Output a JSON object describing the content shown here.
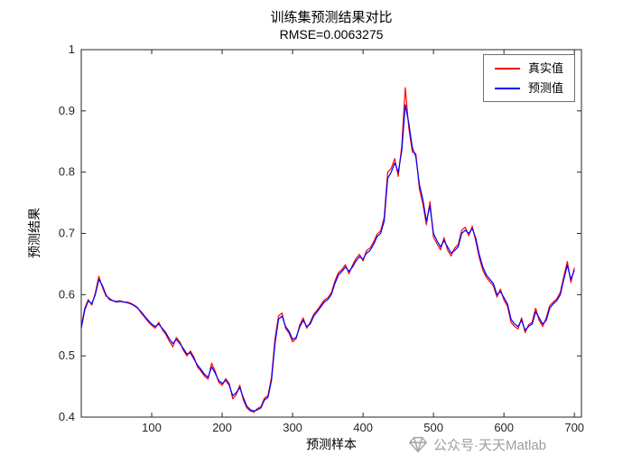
{
  "title": "训练集预测结果对比",
  "subtitle": "RMSE=0.0063275",
  "axes": {
    "xlabel": "预测样本",
    "ylabel": "预测结果"
  },
  "legend": {
    "items": [
      {
        "label": "真实值",
        "color": "#ff0000"
      },
      {
        "label": "预测值",
        "color": "#0000ff"
      }
    ]
  },
  "watermark": {
    "text": "公众号·天天Matlab"
  },
  "chart_data": {
    "type": "line",
    "title": "训练集预测结果对比",
    "subtitle": "RMSE=0.0063275",
    "xlabel": "预测样本",
    "ylabel": "预测结果",
    "xlim": [
      0,
      710
    ],
    "ylim": [
      0.4,
      1.0
    ],
    "grid": false,
    "legend_position": "top-right",
    "xticks": [
      100,
      200,
      300,
      400,
      500,
      600,
      700
    ],
    "yticks": [
      {
        "v": 0.4,
        "label": "0.4"
      },
      {
        "v": 0.5,
        "label": "0.5"
      },
      {
        "v": 0.6,
        "label": "0.6"
      },
      {
        "v": 0.7,
        "label": "0.7"
      },
      {
        "v": 0.8,
        "label": "0.8"
      },
      {
        "v": 0.9,
        "label": "0.9"
      },
      {
        "v": 1.0,
        "label": "1"
      }
    ],
    "x": [
      0,
      5,
      10,
      15,
      20,
      25,
      30,
      35,
      40,
      45,
      50,
      55,
      60,
      65,
      70,
      75,
      80,
      85,
      90,
      95,
      100,
      105,
      110,
      115,
      120,
      125,
      130,
      135,
      140,
      145,
      150,
      155,
      160,
      165,
      170,
      175,
      180,
      185,
      190,
      195,
      200,
      205,
      210,
      215,
      220,
      225,
      230,
      235,
      240,
      245,
      250,
      255,
      260,
      265,
      270,
      275,
      280,
      285,
      290,
      295,
      300,
      305,
      310,
      315,
      320,
      325,
      330,
      335,
      340,
      345,
      350,
      355,
      360,
      365,
      370,
      375,
      380,
      385,
      390,
      395,
      400,
      405,
      410,
      415,
      420,
      425,
      430,
      435,
      440,
      445,
      450,
      455,
      460,
      465,
      470,
      475,
      480,
      485,
      490,
      495,
      500,
      505,
      510,
      515,
      520,
      525,
      530,
      535,
      540,
      545,
      550,
      555,
      560,
      565,
      570,
      575,
      580,
      585,
      590,
      595,
      600,
      605,
      610,
      615,
      620,
      625,
      630,
      635,
      640,
      645,
      650,
      655,
      660,
      665,
      670,
      675,
      680,
      685,
      690,
      695,
      700
    ],
    "series": [
      {
        "id": "true",
        "name": "真实值",
        "color": "#ff0000",
        "values": [
          0.548,
          0.578,
          0.592,
          0.583,
          0.603,
          0.63,
          0.612,
          0.598,
          0.594,
          0.59,
          0.589,
          0.59,
          0.588,
          0.588,
          0.586,
          0.583,
          0.579,
          0.57,
          0.563,
          0.556,
          0.55,
          0.545,
          0.555,
          0.543,
          0.535,
          0.524,
          0.515,
          0.53,
          0.523,
          0.509,
          0.5,
          0.508,
          0.498,
          0.482,
          0.475,
          0.467,
          0.462,
          0.488,
          0.475,
          0.457,
          0.452,
          0.463,
          0.455,
          0.43,
          0.437,
          0.452,
          0.428,
          0.415,
          0.41,
          0.408,
          0.414,
          0.417,
          0.431,
          0.435,
          0.465,
          0.528,
          0.565,
          0.57,
          0.545,
          0.537,
          0.523,
          0.528,
          0.55,
          0.562,
          0.545,
          0.555,
          0.568,
          0.575,
          0.583,
          0.591,
          0.595,
          0.603,
          0.622,
          0.636,
          0.641,
          0.649,
          0.634,
          0.648,
          0.659,
          0.666,
          0.655,
          0.672,
          0.676,
          0.686,
          0.699,
          0.704,
          0.726,
          0.8,
          0.806,
          0.822,
          0.793,
          0.843,
          0.938,
          0.872,
          0.833,
          0.83,
          0.773,
          0.748,
          0.714,
          0.752,
          0.694,
          0.683,
          0.673,
          0.693,
          0.673,
          0.663,
          0.676,
          0.682,
          0.705,
          0.71,
          0.696,
          0.712,
          0.687,
          0.66,
          0.64,
          0.628,
          0.621,
          0.614,
          0.596,
          0.609,
          0.591,
          0.581,
          0.555,
          0.548,
          0.544,
          0.562,
          0.538,
          0.551,
          0.555,
          0.578,
          0.558,
          0.548,
          0.562,
          0.582,
          0.588,
          0.593,
          0.604,
          0.63,
          0.654,
          0.62,
          0.644
        ]
      },
      {
        "id": "pred",
        "name": "预测值",
        "color": "#0000ff",
        "values": [
          0.545,
          0.575,
          0.59,
          0.585,
          0.6,
          0.625,
          0.615,
          0.6,
          0.592,
          0.59,
          0.588,
          0.589,
          0.588,
          0.587,
          0.585,
          0.582,
          0.578,
          0.572,
          0.565,
          0.558,
          0.552,
          0.548,
          0.552,
          0.545,
          0.538,
          0.528,
          0.52,
          0.527,
          0.52,
          0.512,
          0.503,
          0.505,
          0.495,
          0.485,
          0.478,
          0.47,
          0.465,
          0.482,
          0.472,
          0.46,
          0.455,
          0.46,
          0.452,
          0.435,
          0.44,
          0.448,
          0.432,
          0.418,
          0.412,
          0.41,
          0.412,
          0.415,
          0.428,
          0.432,
          0.46,
          0.52,
          0.56,
          0.565,
          0.548,
          0.54,
          0.527,
          0.53,
          0.547,
          0.558,
          0.548,
          0.552,
          0.565,
          0.572,
          0.58,
          0.588,
          0.592,
          0.6,
          0.618,
          0.632,
          0.638,
          0.645,
          0.638,
          0.645,
          0.655,
          0.662,
          0.658,
          0.668,
          0.672,
          0.682,
          0.695,
          0.7,
          0.72,
          0.79,
          0.8,
          0.815,
          0.8,
          0.835,
          0.91,
          0.88,
          0.84,
          0.825,
          0.78,
          0.755,
          0.72,
          0.745,
          0.7,
          0.688,
          0.678,
          0.688,
          0.678,
          0.668,
          0.672,
          0.678,
          0.7,
          0.705,
          0.7,
          0.708,
          0.692,
          0.665,
          0.645,
          0.632,
          0.625,
          0.618,
          0.6,
          0.605,
          0.595,
          0.585,
          0.56,
          0.552,
          0.548,
          0.558,
          0.542,
          0.548,
          0.552,
          0.572,
          0.562,
          0.552,
          0.558,
          0.578,
          0.585,
          0.59,
          0.6,
          0.625,
          0.648,
          0.625,
          0.64
        ]
      }
    ]
  }
}
